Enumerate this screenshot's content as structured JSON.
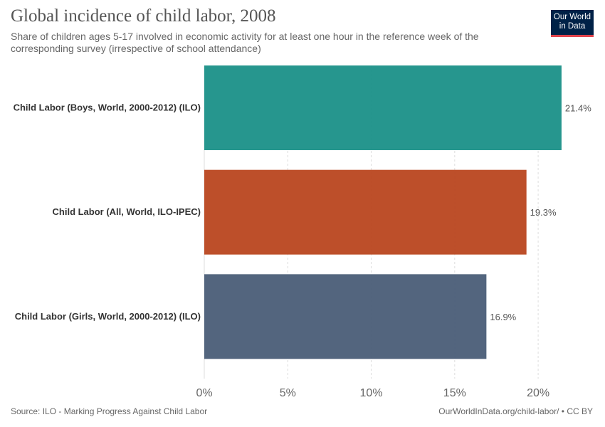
{
  "header": {
    "title": "Global incidence of child labor, 2008",
    "subtitle": "Share of children ages 5-17 involved in economic activity for at least one hour in the reference week of the corresponding survey (irrespective of school attendance)",
    "logo_line1": "Our World",
    "logo_line2": "in Data"
  },
  "footer": {
    "source": "Source: ILO - Marking Progress Against Child Labor",
    "url": "OurWorldInData.org/child-labor/ • CC BY"
  },
  "colors": {
    "bars": [
      "#1a9088",
      "#b9461f",
      "#4a5d77"
    ],
    "grid": "#dddddd",
    "label": "#333333",
    "tick": "#666666"
  },
  "chart_data": {
    "type": "bar",
    "orientation": "horizontal",
    "categories": [
      "Child Labor (Boys, World, 2000-2012) (ILO)",
      "Child Labor (All, World, ILO-IPEC)",
      "Child Labor (Girls, World, 2000-2012) (ILO)"
    ],
    "values": [
      21.4,
      19.3,
      16.9
    ],
    "value_labels": [
      "21.4%",
      "19.3%",
      "16.9%"
    ],
    "xlim": [
      0,
      22
    ],
    "xticks": [
      0,
      5,
      10,
      15,
      20
    ],
    "xtick_labels": [
      "0%",
      "5%",
      "10%",
      "15%",
      "20%"
    ],
    "grid": true
  }
}
